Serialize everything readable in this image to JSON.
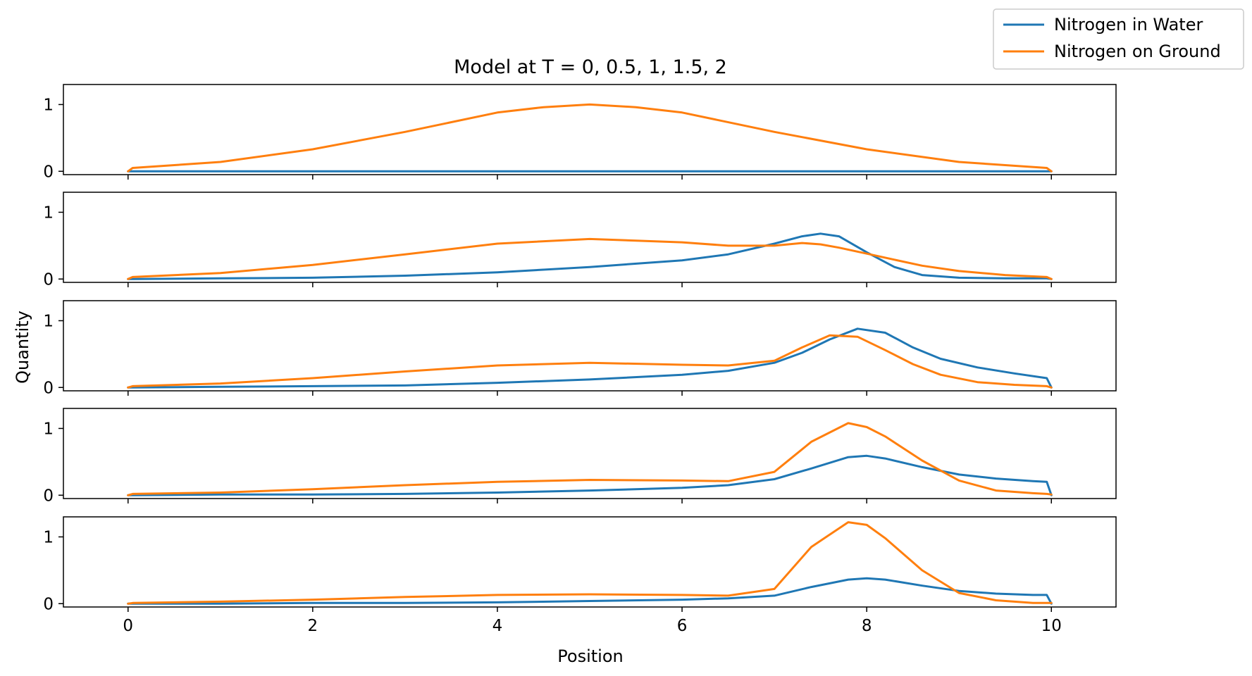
{
  "chart_data": {
    "type": "line",
    "title": "Model at T = 0, 0.5, 1, 1.5, 2",
    "xlabel": "Position",
    "ylabel": "Quantity",
    "xlim": [
      -0.7,
      10.7
    ],
    "xticks": [
      0,
      2,
      4,
      6,
      8,
      10
    ],
    "yticks": [
      0,
      1
    ],
    "legend": {
      "placement": "top-right",
      "entries": [
        "Nitrogen in Water",
        "Nitrogen on Ground"
      ]
    },
    "colors": {
      "water": "#1f77b4",
      "ground": "#ff7f0e"
    },
    "panels": [
      {
        "time": 0,
        "ylim": [
          -0.05,
          1.3
        ],
        "x": [
          0,
          0.05,
          1,
          2,
          3,
          4,
          4.5,
          5,
          5.5,
          6,
          7,
          8,
          9,
          9.95,
          10
        ],
        "series": [
          {
            "name": "Nitrogen in Water",
            "values": [
              0,
              0,
              0,
              0,
              0,
              0,
              0,
              0,
              0,
              0,
              0,
              0,
              0,
              0,
              0
            ]
          },
          {
            "name": "Nitrogen on Ground",
            "values": [
              0,
              0.05,
              0.14,
              0.33,
              0.59,
              0.88,
              0.96,
              1.0,
              0.96,
              0.88,
              0.59,
              0.33,
              0.14,
              0.05,
              0
            ]
          }
        ]
      },
      {
        "time": 0.5,
        "ylim": [
          -0.05,
          1.3
        ],
        "x": [
          0,
          0.05,
          1,
          2,
          3,
          4,
          5,
          6,
          6.5,
          7,
          7.3,
          7.5,
          7.7,
          8,
          8.3,
          8.6,
          9,
          9.5,
          9.95,
          10
        ],
        "series": [
          {
            "name": "Nitrogen in Water",
            "values": [
              0,
              0.0,
              0.01,
              0.02,
              0.05,
              0.1,
              0.18,
              0.28,
              0.37,
              0.53,
              0.64,
              0.68,
              0.64,
              0.4,
              0.18,
              0.06,
              0.02,
              0.01,
              0.01,
              0
            ]
          },
          {
            "name": "Nitrogen on Ground",
            "values": [
              0,
              0.03,
              0.09,
              0.21,
              0.37,
              0.53,
              0.6,
              0.55,
              0.5,
              0.5,
              0.54,
              0.52,
              0.47,
              0.38,
              0.29,
              0.2,
              0.12,
              0.06,
              0.03,
              0
            ]
          }
        ]
      },
      {
        "time": 1,
        "ylim": [
          -0.05,
          1.3
        ],
        "x": [
          0,
          0.05,
          1,
          2,
          3,
          4,
          5,
          6,
          6.5,
          7,
          7.3,
          7.6,
          7.9,
          8.2,
          8.5,
          8.8,
          9.2,
          9.6,
          9.95,
          10
        ],
        "series": [
          {
            "name": "Nitrogen in Water",
            "values": [
              0,
              0.0,
              0.01,
              0.02,
              0.03,
              0.07,
              0.12,
              0.19,
              0.25,
              0.37,
              0.52,
              0.72,
              0.88,
              0.82,
              0.6,
              0.43,
              0.3,
              0.21,
              0.14,
              0
            ]
          },
          {
            "name": "Nitrogen on Ground",
            "values": [
              0,
              0.02,
              0.06,
              0.14,
              0.24,
              0.33,
              0.37,
              0.34,
              0.33,
              0.4,
              0.6,
              0.78,
              0.76,
              0.56,
              0.35,
              0.19,
              0.08,
              0.04,
              0.02,
              0
            ]
          }
        ]
      },
      {
        "time": 1.5,
        "ylim": [
          -0.05,
          1.3
        ],
        "x": [
          0,
          0.05,
          1,
          2,
          3,
          4,
          5,
          6,
          6.5,
          7,
          7.4,
          7.8,
          8.0,
          8.2,
          8.6,
          9.0,
          9.4,
          9.8,
          9.95,
          10
        ],
        "series": [
          {
            "name": "Nitrogen in Water",
            "values": [
              0,
              0.0,
              0.01,
              0.01,
              0.02,
              0.04,
              0.07,
              0.11,
              0.15,
              0.24,
              0.4,
              0.57,
              0.59,
              0.55,
              0.42,
              0.31,
              0.25,
              0.21,
              0.2,
              0
            ]
          },
          {
            "name": "Nitrogen on Ground",
            "values": [
              0,
              0.02,
              0.04,
              0.09,
              0.15,
              0.2,
              0.23,
              0.22,
              0.21,
              0.35,
              0.8,
              1.08,
              1.02,
              0.88,
              0.52,
              0.22,
              0.07,
              0.03,
              0.02,
              0.01
            ]
          }
        ]
      },
      {
        "time": 2,
        "ylim": [
          -0.05,
          1.3
        ],
        "x": [
          0,
          0.05,
          1,
          2,
          3,
          4,
          5,
          6,
          6.5,
          7,
          7.4,
          7.8,
          8.0,
          8.2,
          8.6,
          9.0,
          9.4,
          9.8,
          9.95,
          10
        ],
        "series": [
          {
            "name": "Nitrogen in Water",
            "values": [
              0,
              0.0,
              0.0,
              0.01,
              0.01,
              0.02,
              0.04,
              0.06,
              0.08,
              0.12,
              0.25,
              0.36,
              0.38,
              0.36,
              0.27,
              0.19,
              0.15,
              0.13,
              0.13,
              0
            ]
          },
          {
            "name": "Nitrogen on Ground",
            "values": [
              0,
              0.01,
              0.03,
              0.06,
              0.1,
              0.13,
              0.14,
              0.13,
              0.12,
              0.22,
              0.85,
              1.22,
              1.18,
              0.98,
              0.5,
              0.16,
              0.05,
              0.01,
              0.01,
              0.01
            ]
          }
        ]
      }
    ]
  }
}
